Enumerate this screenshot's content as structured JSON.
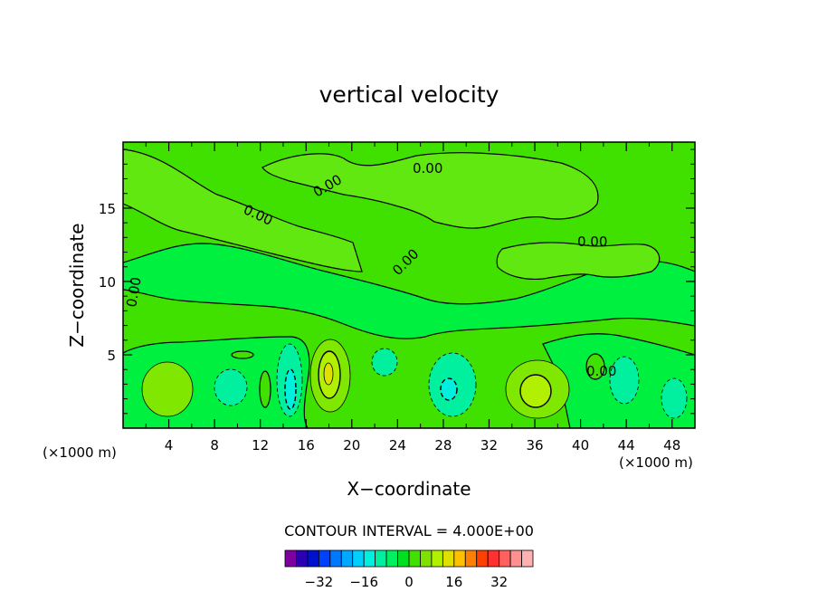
{
  "chart_data": {
    "type": "heatmap",
    "title": "vertical velocity",
    "xlabel": "X−coordinate",
    "ylabel": "Z−coordinate",
    "x_unit_left": "(×1000 m)",
    "x_unit_right": "(×1000 m)",
    "xlim": [
      0,
      50
    ],
    "ylim": [
      0,
      19.5
    ],
    "x_ticks": [
      "4",
      "8",
      "12",
      "16",
      "20",
      "24",
      "28",
      "32",
      "36",
      "40",
      "44",
      "48"
    ],
    "y_ticks": [
      "5",
      "10",
      "15"
    ],
    "contour_labels": [
      "0.00",
      "0.00",
      "0.00",
      "0.00",
      "0.00",
      "0.00",
      "0.00"
    ],
    "contour_interval_text": "CONTOUR INTERVAL = 4.000E+00",
    "colorbar": {
      "tick_labels": [
        "−32",
        "−16",
        "0",
        "16",
        "32"
      ],
      "colors": [
        "#7f00a0",
        "#2a00b0",
        "#0010d0",
        "#0040ff",
        "#0078ff",
        "#00a8ff",
        "#00d0ff",
        "#00f0e0",
        "#00f0a0",
        "#00f060",
        "#00e020",
        "#40e000",
        "#80e000",
        "#b0f000",
        "#e0e000",
        "#ffc000",
        "#ff8000",
        "#ff4000",
        "#ff3030",
        "#ff6060",
        "#ff9090",
        "#ffb0b0"
      ]
    }
  }
}
